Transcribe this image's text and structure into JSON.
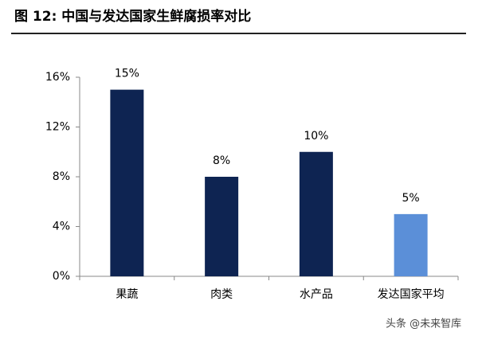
{
  "chart_data": {
    "type": "bar",
    "title": "图 12: 中国与发达国家生鲜腐损率对比",
    "categories": [
      "果蔬",
      "肉类",
      "水产品",
      "发达国家平均"
    ],
    "values": [
      15,
      8,
      10,
      5
    ],
    "value_labels": [
      "15%",
      "8%",
      "10%",
      "5%"
    ],
    "colors": [
      "#0e2452",
      "#0e2452",
      "#0e2452",
      "#5b8fd8"
    ],
    "ylim": [
      0,
      16
    ],
    "yticks": [
      {
        "value": 0,
        "label": "0%"
      },
      {
        "value": 4,
        "label": "4%"
      },
      {
        "value": 8,
        "label": "8%"
      },
      {
        "value": 12,
        "label": "12%"
      },
      {
        "value": 16,
        "label": "16%"
      }
    ],
    "grid": false,
    "watermark": "头条 @未来智库"
  }
}
